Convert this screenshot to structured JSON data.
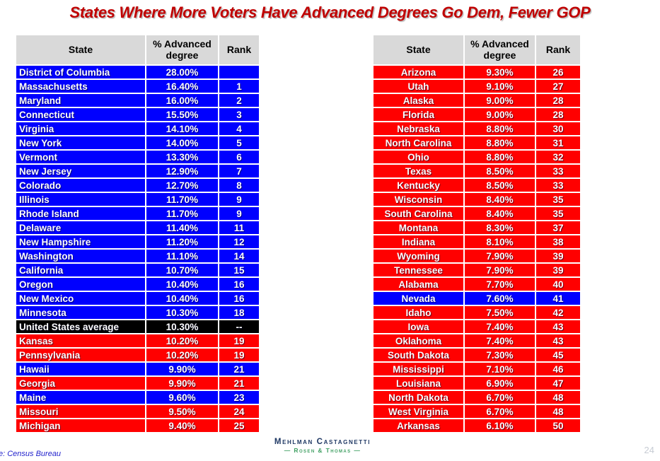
{
  "title": {
    "text": "States Where More Voters Have Advanced Degrees Go Dem, Fewer GOP"
  },
  "colors": {
    "dem": "#0000FF",
    "gop": "#FF0000",
    "avg": "#000000",
    "header_bg": "#D9D9D9",
    "title": "#C00000"
  },
  "chart_data": [
    {
      "type": "table",
      "name": "states-ranked-1-25",
      "columns": [
        "State",
        "% Advanced degree",
        "Rank"
      ],
      "rows": [
        {
          "state": "District of Columbia",
          "pct": "28.00%",
          "rank": "",
          "party": "dem"
        },
        {
          "state": "Massachusetts",
          "pct": "16.40%",
          "rank": "1",
          "party": "dem"
        },
        {
          "state": "Maryland",
          "pct": "16.00%",
          "rank": "2",
          "party": "dem"
        },
        {
          "state": "Connecticut",
          "pct": "15.50%",
          "rank": "3",
          "party": "dem"
        },
        {
          "state": "Virginia",
          "pct": "14.10%",
          "rank": "4",
          "party": "dem"
        },
        {
          "state": "New York",
          "pct": "14.00%",
          "rank": "5",
          "party": "dem"
        },
        {
          "state": "Vermont",
          "pct": "13.30%",
          "rank": "6",
          "party": "dem"
        },
        {
          "state": "New Jersey",
          "pct": "12.90%",
          "rank": "7",
          "party": "dem"
        },
        {
          "state": "Colorado",
          "pct": "12.70%",
          "rank": "8",
          "party": "dem"
        },
        {
          "state": "Illinois",
          "pct": "11.70%",
          "rank": "9",
          "party": "dem"
        },
        {
          "state": "Rhode Island",
          "pct": "11.70%",
          "rank": "9",
          "party": "dem"
        },
        {
          "state": "Delaware",
          "pct": "11.40%",
          "rank": "11",
          "party": "dem"
        },
        {
          "state": "New Hampshire",
          "pct": "11.20%",
          "rank": "12",
          "party": "dem"
        },
        {
          "state": "Washington",
          "pct": "11.10%",
          "rank": "14",
          "party": "dem"
        },
        {
          "state": "California",
          "pct": "10.70%",
          "rank": "15",
          "party": "dem"
        },
        {
          "state": "Oregon",
          "pct": "10.40%",
          "rank": "16",
          "party": "dem"
        },
        {
          "state": "New Mexico",
          "pct": "10.40%",
          "rank": "16",
          "party": "dem"
        },
        {
          "state": "Minnesota",
          "pct": "10.30%",
          "rank": "18",
          "party": "dem"
        },
        {
          "state": "United States average",
          "pct": "10.30%",
          "rank": "--",
          "party": "avg"
        },
        {
          "state": "Kansas",
          "pct": "10.20%",
          "rank": "19",
          "party": "gop"
        },
        {
          "state": "Pennsylvania",
          "pct": "10.20%",
          "rank": "19",
          "party": "gop"
        },
        {
          "state": "Hawaii",
          "pct": "9.90%",
          "rank": "21",
          "party": "dem"
        },
        {
          "state": "Georgia",
          "pct": "9.90%",
          "rank": "21",
          "party": "gop"
        },
        {
          "state": "Maine",
          "pct": "9.60%",
          "rank": "23",
          "party": "dem"
        },
        {
          "state": "Missouri",
          "pct": "9.50%",
          "rank": "24",
          "party": "gop"
        },
        {
          "state": "Michigan",
          "pct": "9.40%",
          "rank": "25",
          "party": "gop"
        }
      ]
    },
    {
      "type": "table",
      "name": "states-ranked-26-50",
      "columns": [
        "State",
        "% Advanced degree",
        "Rank"
      ],
      "rows": [
        {
          "state": "Arizona",
          "pct": "9.30%",
          "rank": "26",
          "party": "gop"
        },
        {
          "state": "Utah",
          "pct": "9.10%",
          "rank": "27",
          "party": "gop"
        },
        {
          "state": "Alaska",
          "pct": "9.00%",
          "rank": "28",
          "party": "gop"
        },
        {
          "state": "Florida",
          "pct": "9.00%",
          "rank": "28",
          "party": "gop"
        },
        {
          "state": "Nebraska",
          "pct": "8.80%",
          "rank": "30",
          "party": "gop"
        },
        {
          "state": "North Carolina",
          "pct": "8.80%",
          "rank": "31",
          "party": "gop"
        },
        {
          "state": "Ohio",
          "pct": "8.80%",
          "rank": "32",
          "party": "gop"
        },
        {
          "state": "Texas",
          "pct": "8.50%",
          "rank": "33",
          "party": "gop"
        },
        {
          "state": "Kentucky",
          "pct": "8.50%",
          "rank": "33",
          "party": "gop"
        },
        {
          "state": "Wisconsin",
          "pct": "8.40%",
          "rank": "35",
          "party": "gop"
        },
        {
          "state": "South Carolina",
          "pct": "8.40%",
          "rank": "35",
          "party": "gop"
        },
        {
          "state": "Montana",
          "pct": "8.30%",
          "rank": "37",
          "party": "gop"
        },
        {
          "state": "Indiana",
          "pct": "8.10%",
          "rank": "38",
          "party": "gop"
        },
        {
          "state": "Wyoming",
          "pct": "7.90%",
          "rank": "39",
          "party": "gop"
        },
        {
          "state": "Tennessee",
          "pct": "7.90%",
          "rank": "39",
          "party": "gop"
        },
        {
          "state": "Alabama",
          "pct": "7.70%",
          "rank": "40",
          "party": "gop"
        },
        {
          "state": "Nevada",
          "pct": "7.60%",
          "rank": "41",
          "party": "dem"
        },
        {
          "state": "Idaho",
          "pct": "7.50%",
          "rank": "42",
          "party": "gop"
        },
        {
          "state": "Iowa",
          "pct": "7.40%",
          "rank": "43",
          "party": "gop"
        },
        {
          "state": "Oklahoma",
          "pct": "7.40%",
          "rank": "43",
          "party": "gop"
        },
        {
          "state": "South Dakota",
          "pct": "7.30%",
          "rank": "45",
          "party": "gop"
        },
        {
          "state": "Mississippi",
          "pct": "7.10%",
          "rank": "46",
          "party": "gop"
        },
        {
          "state": "Louisiana",
          "pct": "6.90%",
          "rank": "47",
          "party": "gop"
        },
        {
          "state": "North Dakota",
          "pct": "6.70%",
          "rank": "48",
          "party": "gop"
        },
        {
          "state": "West Virginia",
          "pct": "6.70%",
          "rank": "48",
          "party": "gop"
        },
        {
          "state": "Arkansas",
          "pct": "6.10%",
          "rank": "50",
          "party": "gop"
        }
      ]
    }
  ],
  "footer": {
    "source": "e: Census Bureau",
    "logo_line1": "Mehlman Castagnetti",
    "logo_line2": "— Rosen & Thomas —",
    "page_number": "24"
  }
}
